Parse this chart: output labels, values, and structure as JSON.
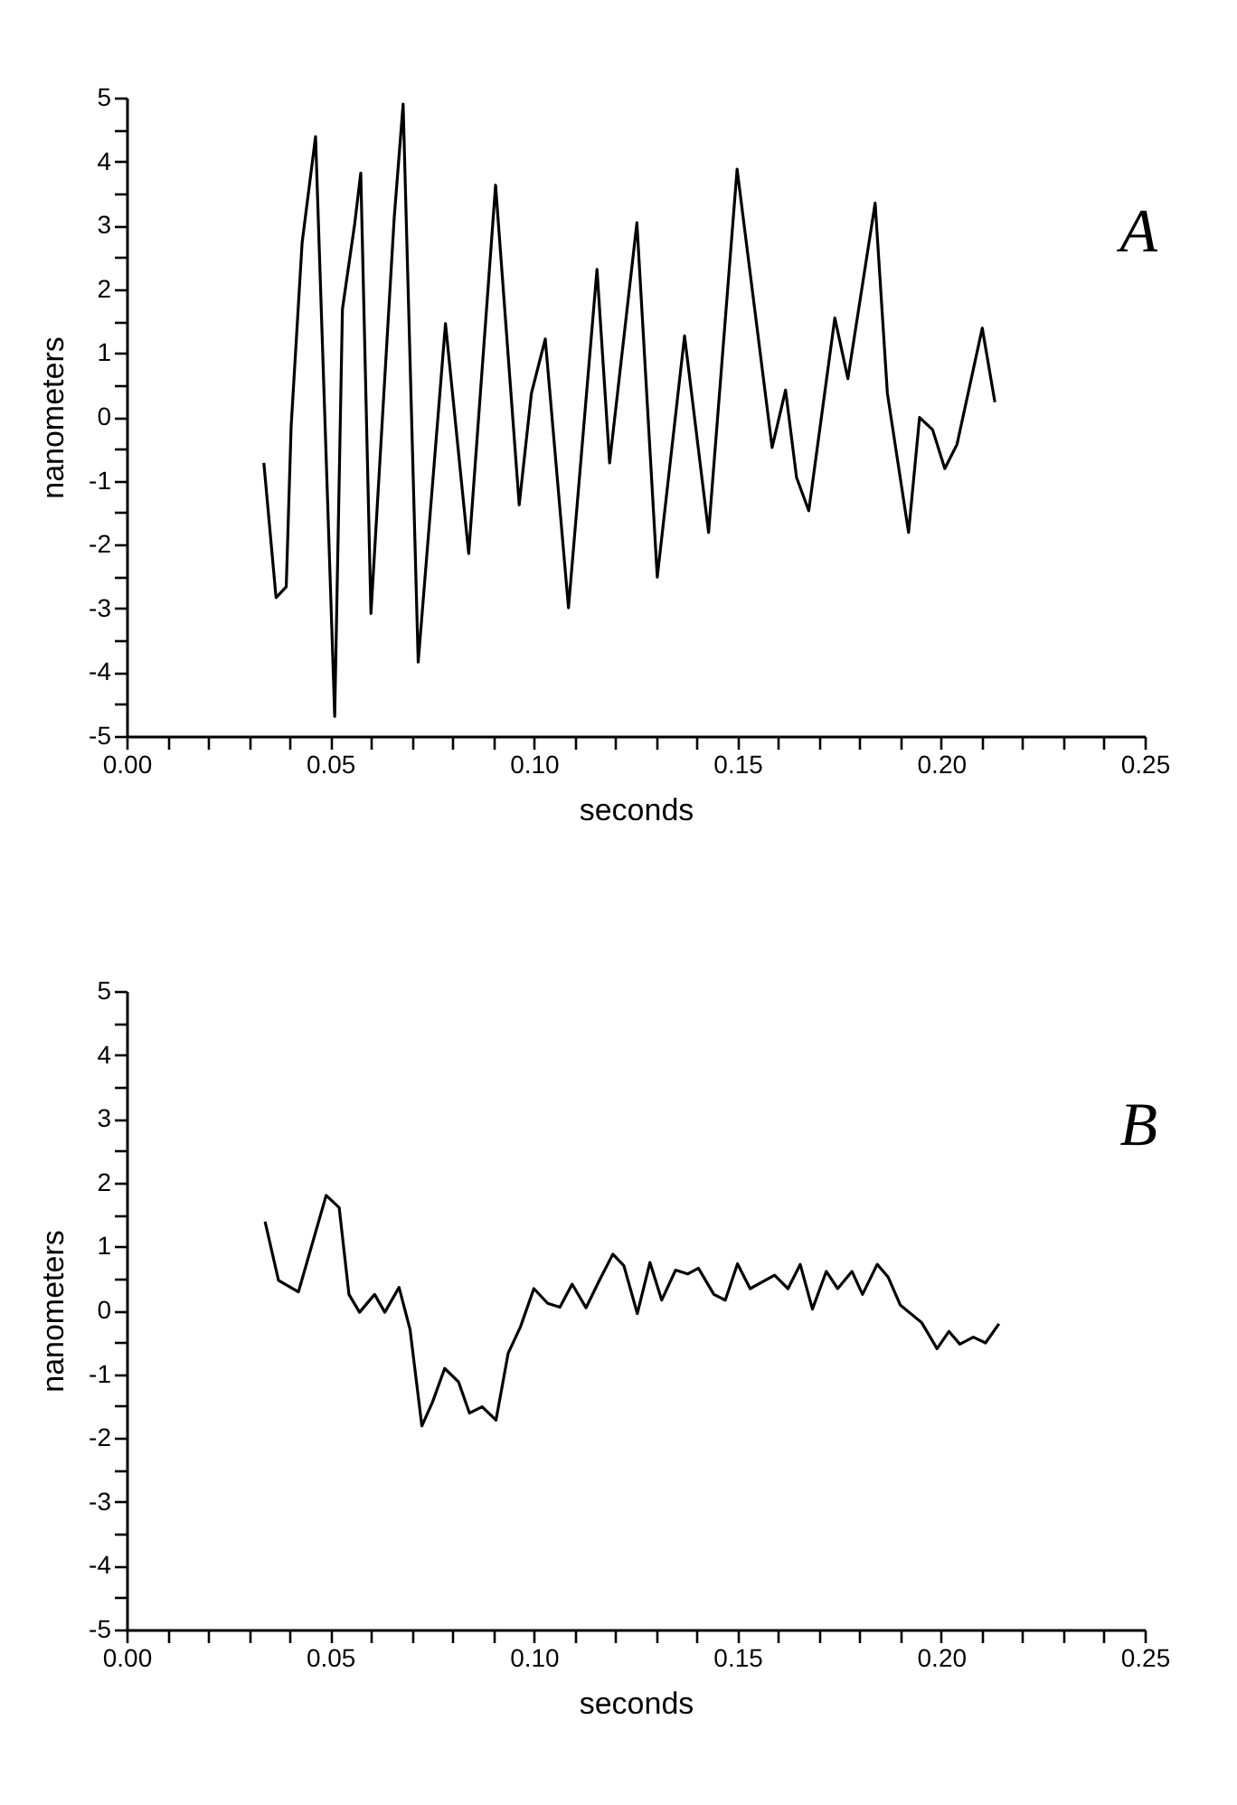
{
  "chart_data": [
    {
      "type": "line",
      "xlabel": "seconds",
      "ylabel": "nanometers",
      "annotations": [
        "A"
      ],
      "color": "#000000",
      "x": [
        0.0337,
        0.0367,
        0.0392,
        0.0404,
        0.0431,
        0.0464,
        0.0511,
        0.053,
        0.056,
        0.0575,
        0.06,
        0.0657,
        0.0679,
        0.0716,
        0.0783,
        0.084,
        0.0906,
        0.0964,
        0.0994,
        0.1028,
        0.1085,
        0.1155,
        0.1186,
        0.1253,
        0.1303,
        0.137,
        0.1429,
        0.1499,
        0.1585,
        0.1618,
        0.1645,
        0.1675,
        0.1739,
        0.1771,
        0.1838,
        0.1868,
        0.192,
        0.1947,
        0.1979,
        0.2009,
        0.2039,
        0.2101,
        0.2132
      ],
      "values": [
        -0.72,
        -2.83,
        -2.66,
        -0.15,
        2.73,
        4.39,
        -4.69,
        1.69,
        3.02,
        3.82,
        -3.08,
        3.11,
        4.9,
        -3.84,
        1.46,
        -2.14,
        3.63,
        -1.38,
        0.37,
        1.22,
        -2.99,
        2.31,
        -0.72,
        3.04,
        -2.51,
        1.27,
        -1.81,
        3.88,
        -0.48,
        0.42,
        -0.95,
        -1.47,
        1.55,
        0.6,
        3.35,
        0.37,
        -1.81,
        -0.01,
        -0.2,
        -0.81,
        -0.43,
        1.39,
        0.23
      ],
      "xlim": [
        0,
        0.25
      ],
      "xticks": [
        {
          "value": 0,
          "label": "0.00"
        },
        {
          "value": 0.01,
          "label": null
        },
        {
          "value": 0.02,
          "label": null
        },
        {
          "value": 0.03,
          "label": null
        },
        {
          "value": 0.04,
          "label": null
        },
        {
          "value": 0.05,
          "label": "0.05"
        },
        {
          "value": 0.06,
          "label": null
        },
        {
          "value": 0.07,
          "label": null
        },
        {
          "value": 0.08,
          "label": null
        },
        {
          "value": 0.09,
          "label": null
        },
        {
          "value": 0.1,
          "label": "0.10"
        },
        {
          "value": 0.11,
          "label": null
        },
        {
          "value": 0.12,
          "label": null
        },
        {
          "value": 0.13,
          "label": null
        },
        {
          "value": 0.14,
          "label": null
        },
        {
          "value": 0.15,
          "label": "0.15"
        },
        {
          "value": 0.16,
          "label": null
        },
        {
          "value": 0.17,
          "label": null
        },
        {
          "value": 0.18,
          "label": null
        },
        {
          "value": 0.19,
          "label": null
        },
        {
          "value": 0.2,
          "label": "0.20"
        },
        {
          "value": 0.21,
          "label": null
        },
        {
          "value": 0.22,
          "label": null
        },
        {
          "value": 0.23,
          "label": null
        },
        {
          "value": 0.24,
          "label": null
        },
        {
          "value": 0.25,
          "label": "0.25"
        }
      ],
      "ylim": [
        -5,
        5
      ],
      "yticks": [
        -5,
        {
          "value": -4.5,
          "label": null
        },
        -4,
        {
          "value": -3.5,
          "label": null
        },
        -3,
        {
          "value": -2.5,
          "label": null
        },
        -2,
        {
          "value": -1.5,
          "label": null
        },
        -1,
        {
          "value": -0.5,
          "label": null
        },
        0,
        {
          "value": 0.5,
          "label": null
        },
        1,
        {
          "value": 1.5,
          "label": null
        },
        2,
        {
          "value": 2.5,
          "label": null
        },
        3,
        {
          "value": 3.5,
          "label": null
        },
        4,
        {
          "value": 4.5,
          "label": null
        },
        5
      ]
    },
    {
      "type": "line",
      "xlabel": "seconds",
      "ylabel": "nanometers",
      "annotations": [
        "B"
      ],
      "color": "#000000",
      "x": [
        0.034,
        0.0373,
        0.0422,
        0.049,
        0.0522,
        0.0546,
        0.0572,
        0.0609,
        0.0634,
        0.0669,
        0.0696,
        0.0725,
        0.0751,
        0.0781,
        0.0815,
        0.0842,
        0.0873,
        0.0907,
        0.0937,
        0.0967,
        0.1,
        0.1034,
        0.1064,
        0.1094,
        0.1128,
        0.1161,
        0.1194,
        0.1221,
        0.1254,
        0.1285,
        0.1314,
        0.1348,
        0.1378,
        0.1404,
        0.1442,
        0.147,
        0.15,
        0.1531,
        0.1591,
        0.1624,
        0.1654,
        0.1684,
        0.1718,
        0.1746,
        0.1781,
        0.1807,
        0.1843,
        0.187,
        0.19,
        0.1952,
        0.199,
        0.2019,
        0.2046,
        0.2079,
        0.2109,
        0.2142
      ],
      "values": [
        1.39,
        0.47,
        0.29,
        1.8,
        1.61,
        0.25,
        -0.03,
        0.25,
        -0.03,
        0.36,
        -0.3,
        -1.81,
        -1.44,
        -0.91,
        -1.12,
        -1.61,
        -1.51,
        -1.72,
        -0.67,
        -0.26,
        0.34,
        0.11,
        0.05,
        0.41,
        0.04,
        0.47,
        0.88,
        0.7,
        -0.05,
        0.75,
        0.16,
        0.63,
        0.57,
        0.66,
        0.25,
        0.16,
        0.73,
        0.34,
        0.55,
        0.34,
        0.72,
        0.02,
        0.61,
        0.34,
        0.61,
        0.25,
        0.72,
        0.52,
        0.08,
        -0.19,
        -0.6,
        -0.33,
        -0.53,
        -0.42,
        -0.51,
        -0.21
      ],
      "xlim": [
        0,
        0.25
      ],
      "xticks": [
        {
          "value": 0,
          "label": "0.00"
        },
        {
          "value": 0.01,
          "label": null
        },
        {
          "value": 0.02,
          "label": null
        },
        {
          "value": 0.03,
          "label": null
        },
        {
          "value": 0.04,
          "label": null
        },
        {
          "value": 0.05,
          "label": "0.05"
        },
        {
          "value": 0.06,
          "label": null
        },
        {
          "value": 0.07,
          "label": null
        },
        {
          "value": 0.08,
          "label": null
        },
        {
          "value": 0.09,
          "label": null
        },
        {
          "value": 0.1,
          "label": "0.10"
        },
        {
          "value": 0.11,
          "label": null
        },
        {
          "value": 0.12,
          "label": null
        },
        {
          "value": 0.13,
          "label": null
        },
        {
          "value": 0.14,
          "label": null
        },
        {
          "value": 0.15,
          "label": "0.15"
        },
        {
          "value": 0.16,
          "label": null
        },
        {
          "value": 0.17,
          "label": null
        },
        {
          "value": 0.18,
          "label": null
        },
        {
          "value": 0.19,
          "label": null
        },
        {
          "value": 0.2,
          "label": "0.20"
        },
        {
          "value": 0.21,
          "label": null
        },
        {
          "value": 0.22,
          "label": null
        },
        {
          "value": 0.23,
          "label": null
        },
        {
          "value": 0.24,
          "label": null
        },
        {
          "value": 0.25,
          "label": "0.25"
        }
      ],
      "ylim": [
        -5,
        5
      ],
      "yticks": [
        -5,
        {
          "value": -4.5,
          "label": null
        },
        -4,
        {
          "value": -3.5,
          "label": null
        },
        -3,
        {
          "value": -2.5,
          "label": null
        },
        -2,
        {
          "value": -1.5,
          "label": null
        },
        -1,
        {
          "value": -0.5,
          "label": null
        },
        0,
        {
          "value": 0.5,
          "label": null
        },
        1,
        {
          "value": 1.5,
          "label": null
        },
        2,
        {
          "value": 2.5,
          "label": null
        },
        3,
        {
          "value": 3.5,
          "label": null
        },
        4,
        {
          "value": 4.5,
          "label": null
        },
        5
      ]
    }
  ]
}
